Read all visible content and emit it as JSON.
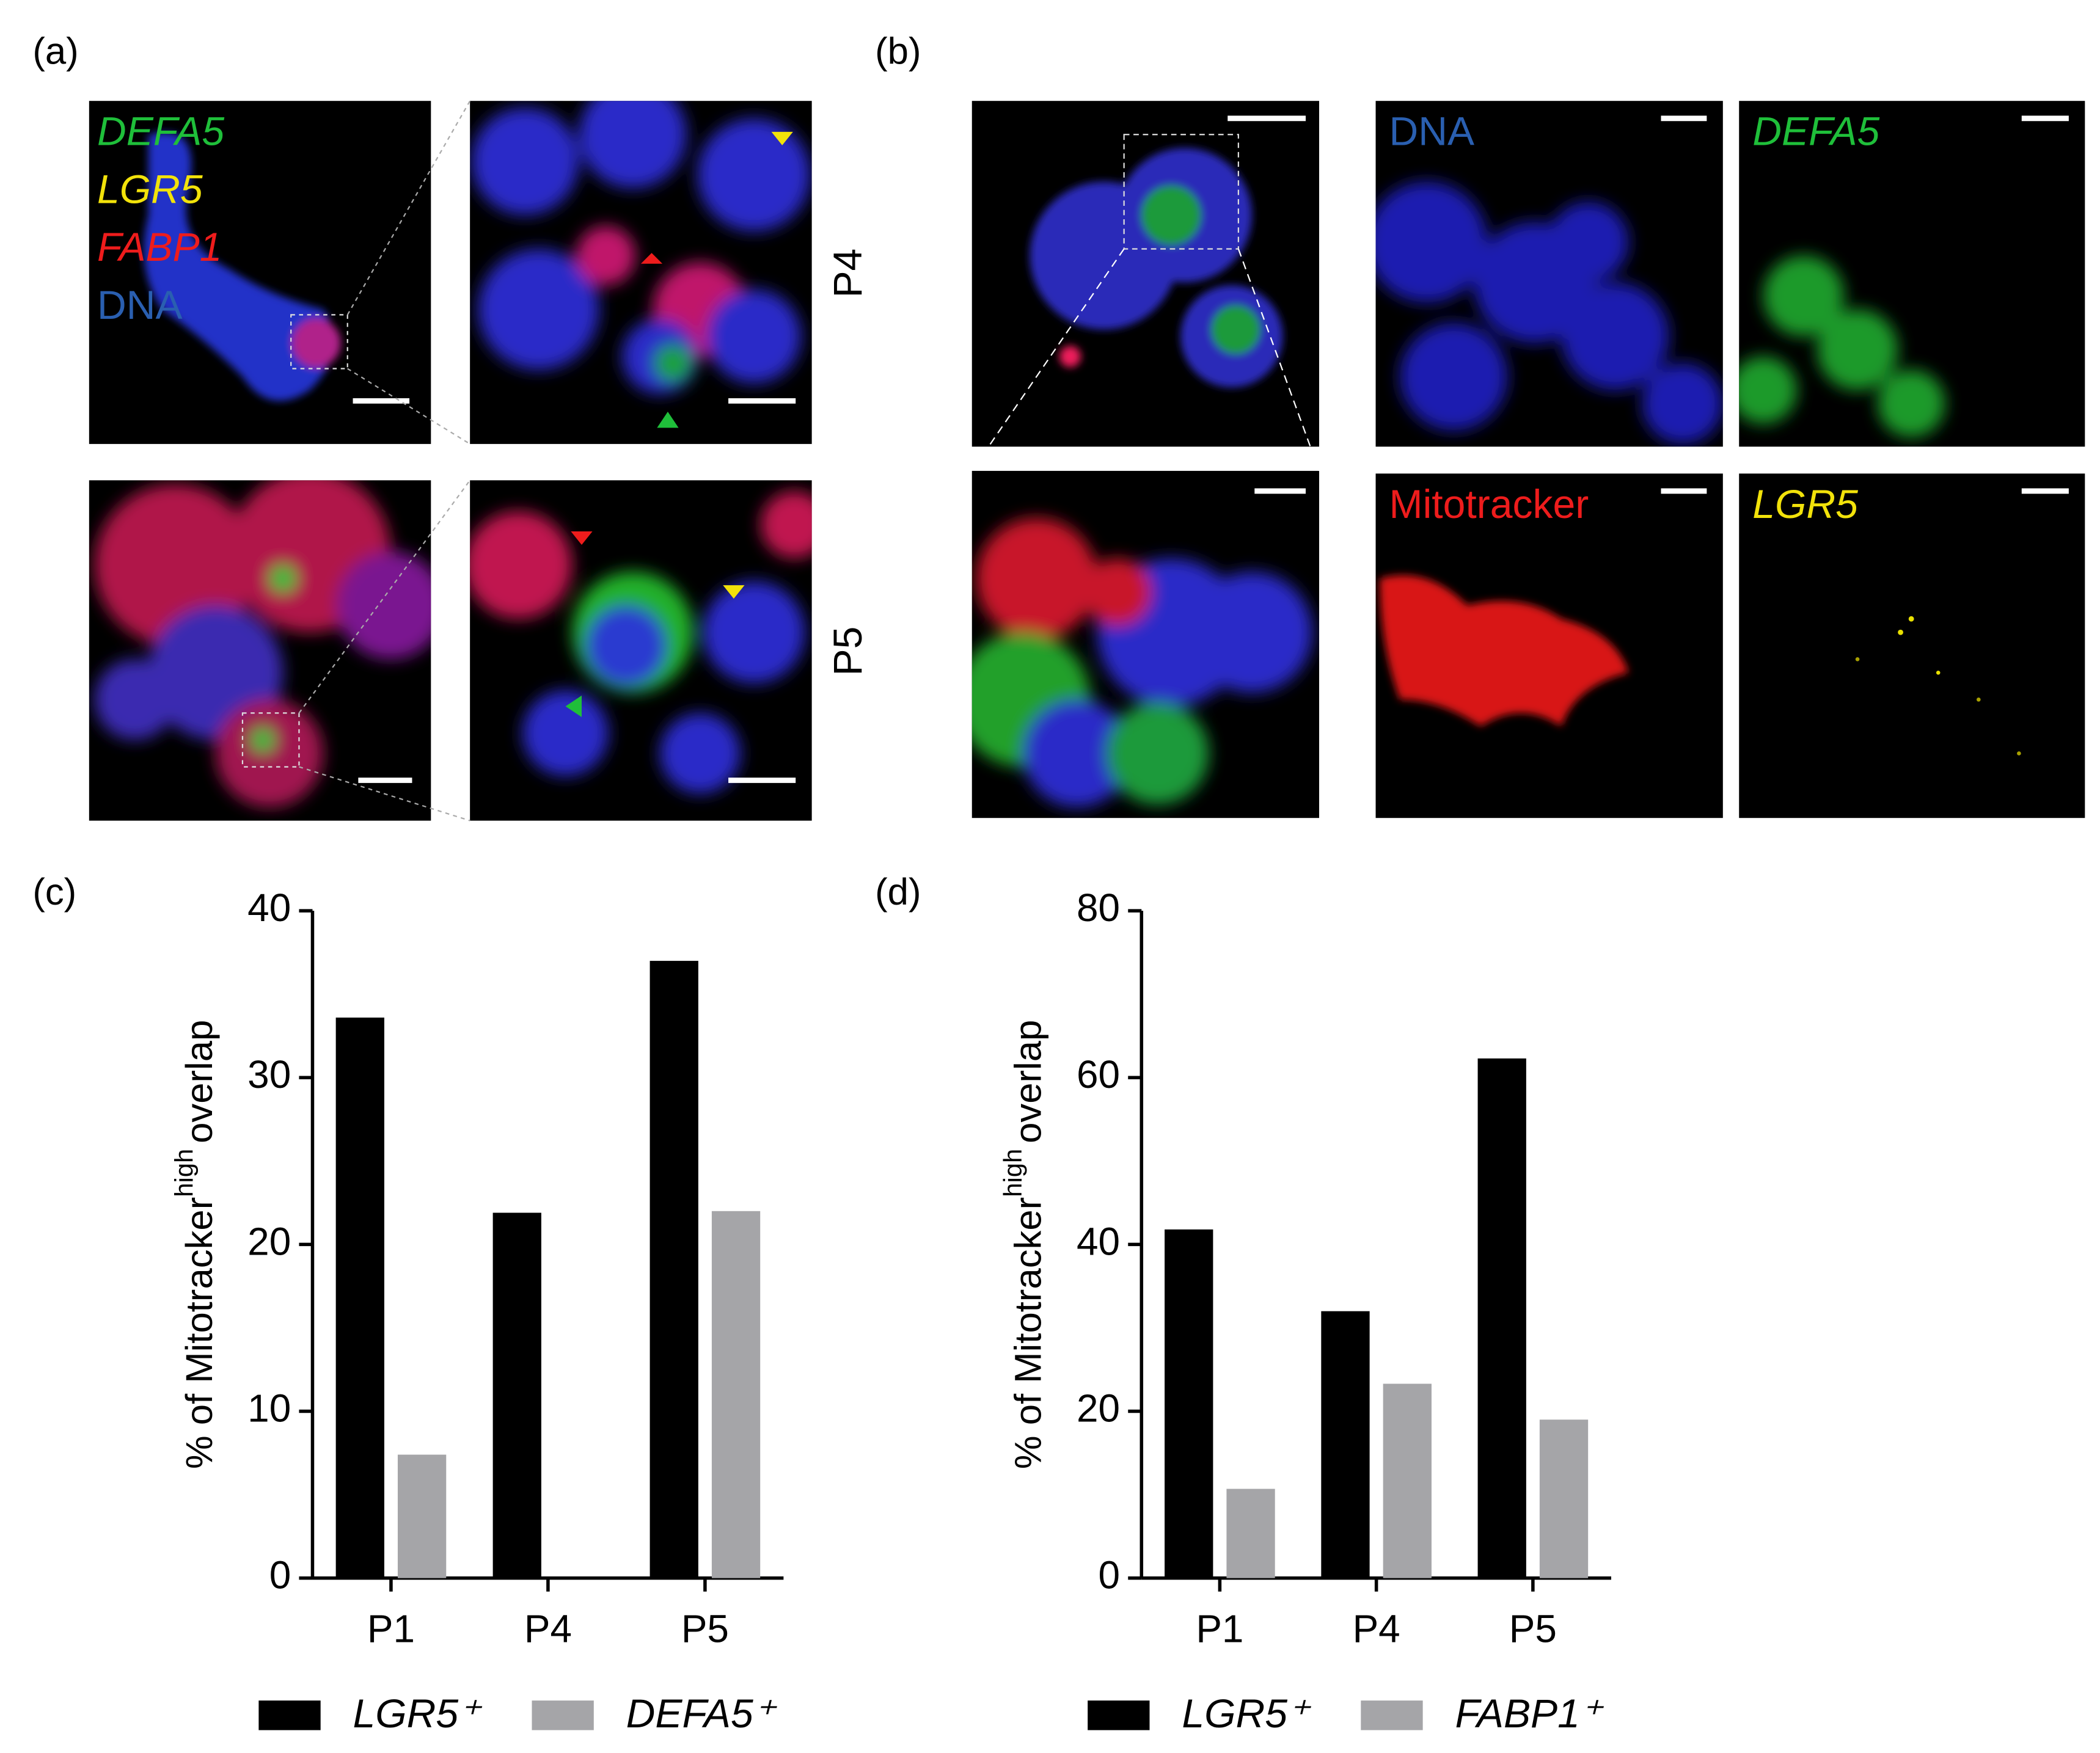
{
  "panels": {
    "a": {
      "label": "(a)",
      "legend": [
        {
          "text": "DEFA5",
          "color": "#1fbf3a"
        },
        {
          "text": "LGR5",
          "color": "#f2e20a"
        },
        {
          "text": "FABP1",
          "color": "#ee1c1c"
        },
        {
          "text": "DNA",
          "color": "#2a5fb0"
        }
      ],
      "rows": [
        "P4",
        "P5"
      ]
    },
    "b": {
      "label": "(b)",
      "channels": [
        {
          "text": "DNA",
          "color": "#2a5fb0"
        },
        {
          "text": "DEFA5",
          "color": "#1fbf3a"
        },
        {
          "text": "Mitotracker",
          "color": "#ee1c1c"
        },
        {
          "text": "LGR5",
          "color": "#f2e20a"
        }
      ]
    }
  },
  "chart_data": [
    {
      "type": "bar",
      "label": "(c)",
      "y_label": [
        "% of Mitotracker",
        "high",
        "overlap"
      ],
      "categories": [
        "P1",
        "P4",
        "P5"
      ],
      "series": [
        {
          "name": "LGR5⁺",
          "color": "#000000",
          "values": [
            33.6,
            21.9,
            37.0
          ]
        },
        {
          "name": "DEFA5⁺",
          "color": "#a5a5a8",
          "values": [
            7.4,
            0,
            22.0
          ]
        }
      ],
      "ylim": [
        0,
        40
      ],
      "yticks": [
        0,
        10,
        20,
        30,
        40
      ]
    },
    {
      "type": "bar",
      "label": "(d)",
      "y_label": [
        "% of Mitotracker",
        "high",
        "overlap"
      ],
      "categories": [
        "P1",
        "P4",
        "P5"
      ],
      "series": [
        {
          "name": "LGR5⁺",
          "color": "#000000",
          "values": [
            41.8,
            32.0,
            62.3
          ]
        },
        {
          "name": "FABP1⁺",
          "color": "#a5a5a8",
          "values": [
            10.7,
            23.3,
            19.0
          ]
        }
      ],
      "ylim": [
        0,
        80
      ],
      "yticks": [
        0,
        20,
        40,
        60,
        80
      ]
    }
  ]
}
